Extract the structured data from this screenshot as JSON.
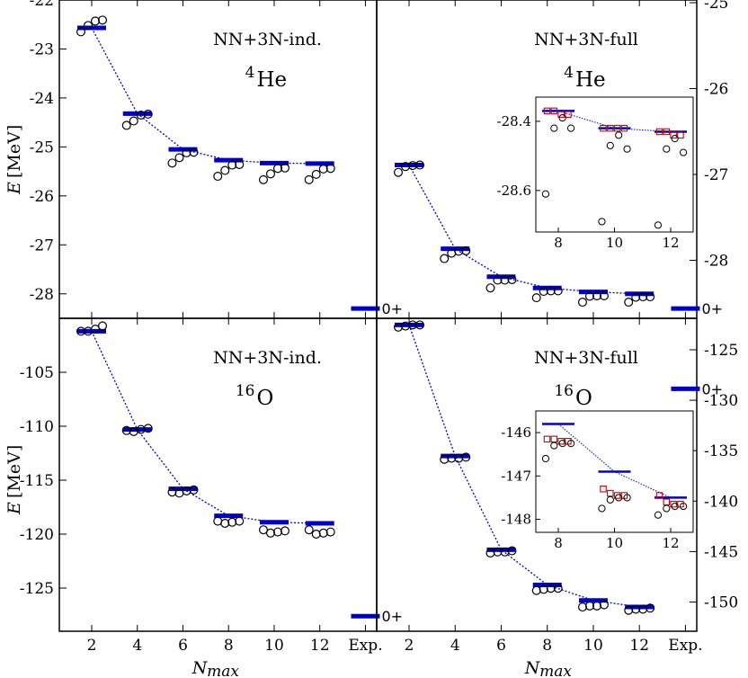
{
  "chart_data": {
    "type": "scatter",
    "x_tick_labels": [
      "2",
      "4",
      "6",
      "8",
      "10",
      "12",
      "Exp."
    ],
    "xlabel": "N",
    "xlabel_sub": "max",
    "ylabel": "E",
    "ylabel_unit": "[MeV]",
    "exp_state_label": "0+",
    "inset_x_ticks": [
      "8",
      "10",
      "12"
    ],
    "panels": [
      {
        "id": "he4-ind",
        "nucleus_mass": "4",
        "nucleus_symbol": "He",
        "interaction": "NN+3N-ind.",
        "ylim": [
          -28.5,
          -22
        ],
        "y_ticks": [
          "-22",
          "-23",
          "-24",
          "-25",
          "-26",
          "-27",
          "-28"
        ],
        "x_categories": [
          2,
          4,
          6,
          8,
          10,
          12
        ],
        "bars": [
          -22.57,
          -24.32,
          -25.05,
          -25.27,
          -25.33,
          -25.34
        ],
        "points": [
          [
            -22.65,
            -22.52,
            -22.43,
            -22.41
          ],
          [
            -24.56,
            -24.47,
            -24.35,
            -24.33
          ],
          [
            -25.33,
            -25.22,
            -25.12,
            -25.11
          ],
          [
            -25.6,
            -25.48,
            -25.37,
            -25.36
          ],
          [
            -25.67,
            -25.55,
            -25.44,
            -25.43
          ],
          [
            -25.67,
            -25.56,
            -25.45,
            -25.44
          ]
        ],
        "experiment": -28.3
      },
      {
        "id": "he4-full",
        "nucleus_mass": "4",
        "nucleus_symbol": "He",
        "interaction": "NN+3N-full",
        "ylim": [
          -28.5,
          -22
        ],
        "y_right_ticks": [
          "-25",
          "-26",
          "-27",
          "-28"
        ],
        "x_categories": [
          2,
          4,
          6,
          8,
          10,
          12
        ],
        "bars": [
          -25.37,
          -27.08,
          -27.65,
          -27.88,
          -27.96,
          -28.0
        ],
        "points": [
          [
            -25.52,
            -25.4,
            -25.38,
            -25.37
          ],
          [
            -27.28,
            -27.17,
            -27.13,
            -27.12
          ],
          [
            -27.88,
            -27.72,
            -27.72,
            -27.71
          ],
          [
            -28.08,
            -27.95,
            -27.94,
            -27.94
          ],
          [
            -28.17,
            -28.05,
            -28.04,
            -28.04
          ],
          [
            -28.17,
            -28.07,
            -28.06,
            -28.06
          ]
        ],
        "experiment": -28.3,
        "inset": {
          "x_ticks": [
            8,
            10,
            12
          ],
          "xlim": [
            7.2,
            12.8
          ],
          "ylim": [
            -28.72,
            -28.33
          ],
          "y_ticks": [
            "-28.4",
            "-28.6"
          ],
          "bars": [
            [
              8,
              -28.37
            ],
            [
              10,
              -28.42
            ],
            [
              12,
              -28.43
            ]
          ],
          "squares": [
            [
              7.6,
              -28.37
            ],
            [
              7.85,
              -28.37
            ],
            [
              8.1,
              -28.38
            ],
            [
              8.35,
              -28.38
            ],
            [
              9.6,
              -28.42
            ],
            [
              9.85,
              -28.42
            ],
            [
              10.1,
              -28.42
            ],
            [
              10.35,
              -28.42
            ],
            [
              11.6,
              -28.43
            ],
            [
              11.85,
              -28.43
            ],
            [
              12.1,
              -28.44
            ],
            [
              12.35,
              -28.44
            ]
          ],
          "circles": [
            [
              7.55,
              -28.61
            ],
            [
              7.85,
              -28.42
            ],
            [
              8.15,
              -28.39
            ],
            [
              8.45,
              -28.42
            ],
            [
              9.55,
              -28.69
            ],
            [
              9.85,
              -28.47
            ],
            [
              10.15,
              -28.44
            ],
            [
              10.45,
              -28.48
            ],
            [
              11.55,
              -28.7
            ],
            [
              11.85,
              -28.48
            ],
            [
              12.15,
              -28.45
            ],
            [
              12.45,
              -28.49
            ]
          ]
        }
      },
      {
        "id": "o16-ind",
        "nucleus_mass": "16",
        "nucleus_symbol": "O",
        "interaction": "NN+3N-ind.",
        "ylim": [
          -129,
          -100
        ],
        "y_ticks": [
          "-105",
          "-110",
          "-115",
          "-120",
          "-125"
        ],
        "x_categories": [
          2,
          4,
          6,
          8,
          10,
          12
        ],
        "bars": [
          -101.2,
          -110.3,
          -115.8,
          -118.3,
          -118.9,
          -119.0
        ],
        "points": [
          [
            -101.2,
            -101.2,
            -101.0,
            -100.7
          ],
          [
            -110.4,
            -110.5,
            -110.3,
            -110.2
          ],
          [
            -116.1,
            -116.2,
            -116.0,
            -115.9
          ],
          [
            -118.8,
            -119.0,
            -118.9,
            -118.8
          ],
          [
            -119.6,
            -119.9,
            -119.8,
            -119.7
          ],
          [
            -119.6,
            -120.0,
            -119.9,
            -119.8
          ]
        ],
        "experiment": -127.6
      },
      {
        "id": "o16-full",
        "nucleus_mass": "16",
        "nucleus_symbol": "O",
        "interaction": "NN+3N-full",
        "ylim": [
          -149.6,
          -121.2
        ],
        "y_right_ticks": [
          "-125",
          "-130",
          "-135",
          "-140",
          "-145",
          "-150"
        ],
        "x_categories": [
          2,
          4,
          6,
          8,
          10,
          12
        ],
        "bars": [
          -121.8,
          -133.7,
          -142.2,
          -145.4,
          -146.8,
          -147.4
        ],
        "points": [
          [
            -122.0,
            -121.9,
            -121.8,
            -121.8
          ],
          [
            -134.0,
            -133.9,
            -133.9,
            -133.8
          ],
          [
            -142.5,
            -142.4,
            -142.4,
            -142.3
          ],
          [
            -145.9,
            -145.8,
            -145.7,
            -145.7
          ],
          [
            -147.4,
            -147.3,
            -147.3,
            -147.2
          ],
          [
            -147.7,
            -147.6,
            -147.6,
            -147.5
          ]
        ],
        "experiment": -127.6,
        "inset": {
          "x_ticks": [
            8,
            10,
            12
          ],
          "xlim": [
            7.2,
            12.8
          ],
          "ylim": [
            -148.3,
            -145.5
          ],
          "y_ticks": [
            "-146",
            "-147",
            "-148"
          ],
          "bars": [
            [
              8,
              -145.8
            ],
            [
              10,
              -146.9
            ],
            [
              12,
              -147.5
            ]
          ],
          "squares": [
            [
              7.6,
              -146.15
            ],
            [
              7.85,
              -146.15
            ],
            [
              8.1,
              -146.2
            ],
            [
              8.35,
              -146.2
            ],
            [
              9.6,
              -147.3
            ],
            [
              9.85,
              -147.4
            ],
            [
              10.1,
              -147.45
            ],
            [
              10.35,
              -147.45
            ],
            [
              11.6,
              -147.45
            ],
            [
              11.85,
              -147.6
            ],
            [
              12.1,
              -147.65
            ],
            [
              12.35,
              -147.65
            ]
          ],
          "circles": [
            [
              7.55,
              -146.6
            ],
            [
              7.85,
              -146.3
            ],
            [
              8.15,
              -146.25
            ],
            [
              8.45,
              -146.25
            ],
            [
              9.55,
              -147.75
            ],
            [
              9.85,
              -147.55
            ],
            [
              10.15,
              -147.5
            ],
            [
              10.45,
              -147.5
            ],
            [
              11.55,
              -147.9
            ],
            [
              11.85,
              -147.75
            ],
            [
              12.15,
              -147.7
            ],
            [
              12.45,
              -147.7
            ]
          ]
        }
      }
    ]
  }
}
